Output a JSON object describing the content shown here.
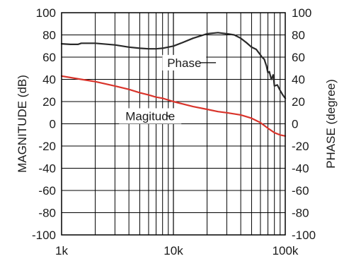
{
  "chart_data": {
    "type": "line",
    "xlabel": "",
    "ylabel": "MAGNITUDE (dB)",
    "y2label": "PHASE (degree)",
    "x_scale": "log",
    "xlim": [
      1000,
      100000
    ],
    "ylim": [
      -100,
      100
    ],
    "y2lim": [
      -100,
      100
    ],
    "grid": true,
    "x_tick_values": [
      1000,
      10000,
      100000
    ],
    "x_tick_labels": [
      "1k",
      "10k",
      "100k"
    ],
    "y_tick_values": [
      -100,
      -80,
      -60,
      -40,
      -20,
      0,
      20,
      40,
      60,
      80,
      100
    ],
    "y_tick_labels": [
      "-100",
      "-80",
      "-60",
      "-40",
      "-20",
      "0",
      "20",
      "40",
      "60",
      "80",
      "100"
    ],
    "y2_tick_values": [
      -100,
      -80,
      -60,
      -40,
      -20,
      0,
      20,
      40,
      60,
      80,
      100
    ],
    "y2_tick_labels": [
      "-100",
      "-80",
      "-60",
      "-40",
      "-20",
      "0",
      "20",
      "40",
      "60",
      "80",
      "100"
    ],
    "series": [
      {
        "name": "Magitude",
        "axis": "left",
        "color": "#d9342b",
        "x": [
          1000,
          1500,
          2000,
          3000,
          4000,
          5000,
          6000,
          7000,
          8000,
          10000,
          12000,
          15000,
          20000,
          25000,
          30000,
          40000,
          50000,
          60000,
          70000,
          80000,
          90000,
          100000
        ],
        "y": [
          43,
          40,
          38,
          34,
          31,
          28,
          26,
          24,
          23,
          20,
          18,
          15.5,
          13,
          11,
          10,
          8,
          5,
          1,
          -4,
          -8,
          -10,
          -11
        ]
      },
      {
        "name": "Phase",
        "axis": "right",
        "color": "#2a2a2a",
        "x": [
          1000,
          1200,
          1400,
          1500,
          2000,
          3000,
          4000,
          5000,
          6000,
          7000,
          8000,
          10000,
          12000,
          15000,
          20000,
          25000,
          30000,
          35000,
          40000,
          45000,
          50000,
          55000,
          60000,
          62000,
          65000,
          68000,
          70000,
          72000,
          75000,
          78000,
          80000,
          85000,
          90000,
          95000,
          100000
        ],
        "y": [
          72,
          71.5,
          71.5,
          72.5,
          72.5,
          71,
          69,
          68,
          67.5,
          67.5,
          68,
          70,
          73,
          77,
          81,
          82,
          81,
          80,
          77,
          73,
          69,
          67,
          62,
          60,
          58,
          52,
          46,
          47,
          40,
          44,
          34,
          35,
          30,
          26,
          23
        ]
      }
    ],
    "annotations": [
      "Phase",
      "Magitude"
    ]
  }
}
